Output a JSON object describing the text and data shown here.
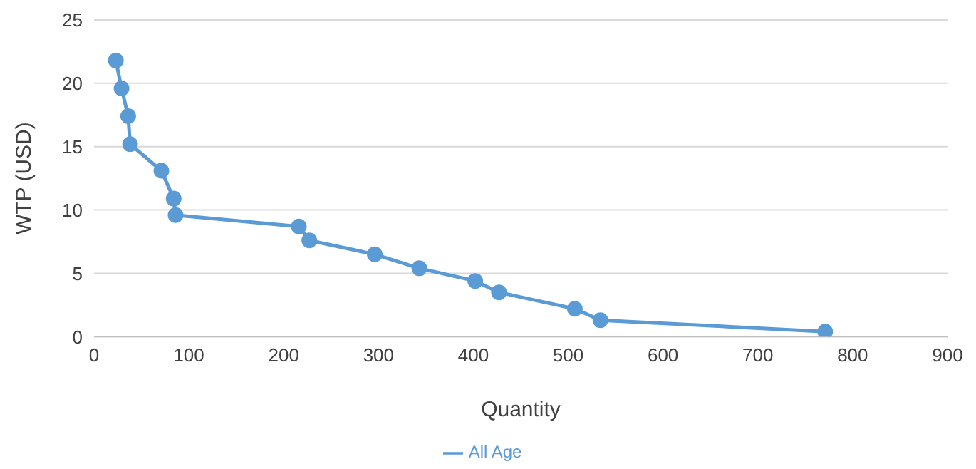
{
  "chart_data": {
    "type": "line",
    "xlabel": "Quantity",
    "ylabel": "WTP (USD)",
    "series": [
      {
        "name": "All Age",
        "color": "#5b9bd5",
        "x": [
          23,
          29,
          36,
          38,
          71,
          84,
          86,
          216,
          227,
          296,
          343,
          402,
          427,
          507,
          534,
          771
        ],
        "values": [
          21.8,
          19.6,
          17.4,
          15.2,
          13.1,
          10.9,
          9.6,
          8.7,
          7.6,
          6.5,
          5.4,
          4.4,
          3.5,
          2.2,
          1.3,
          0.4
        ]
      }
    ],
    "xlim": [
      0,
      900
    ],
    "xticks": [
      0,
      100,
      200,
      300,
      400,
      500,
      600,
      700,
      800,
      900
    ],
    "ylim": [
      0,
      25
    ],
    "yticks": [
      0,
      5,
      10,
      15,
      20,
      25
    ],
    "grid": "y",
    "legend": "bottom",
    "marker": "circle",
    "line_style": "solid"
  }
}
